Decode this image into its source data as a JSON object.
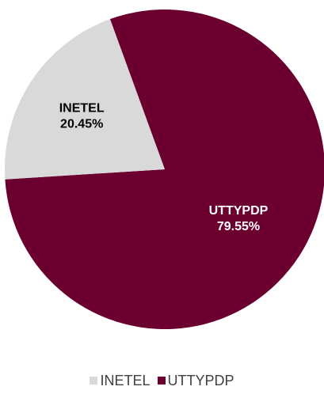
{
  "chart_data": {
    "type": "pie",
    "title": "",
    "slices": [
      {
        "label": "INETEL",
        "value": 20.45,
        "value_label": "20.45%",
        "color": "#d9d9d9",
        "label_color": "#000000"
      },
      {
        "label": "UTTYPDP",
        "value": 79.55,
        "value_label": "79.55%",
        "color": "#6b0030",
        "label_color": "#ffffff"
      }
    ],
    "legend_position": "bottom"
  }
}
